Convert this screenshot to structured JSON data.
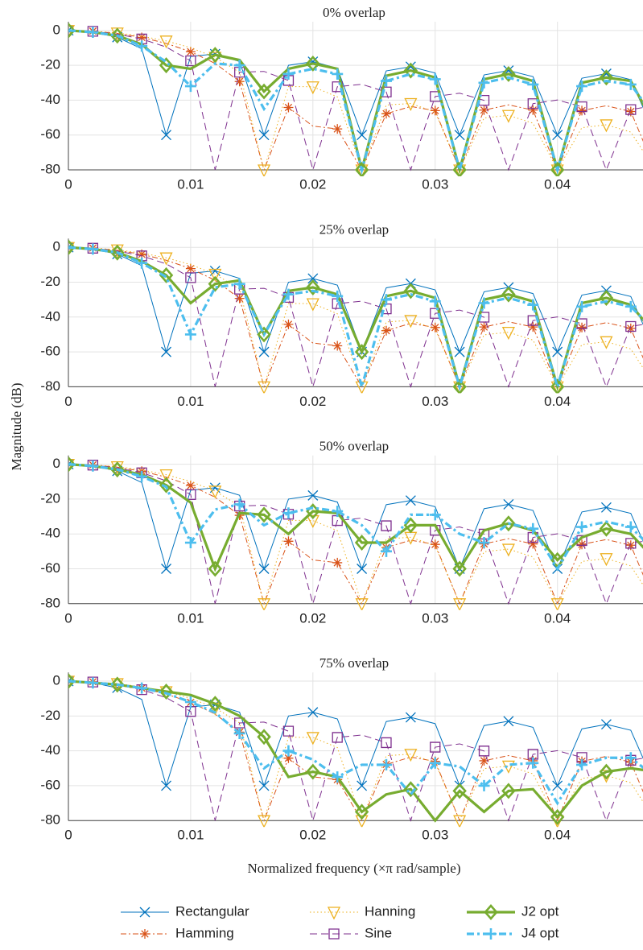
{
  "figure": {
    "ylabel": "Magnitude (dB)",
    "xlabel": "Normalized frequency (×π rad/sample)"
  },
  "chart_data": [
    {
      "type": "line",
      "title": "0% overlap",
      "x": [
        0,
        0.002,
        0.004,
        0.006,
        0.008,
        0.01,
        0.012,
        0.014,
        0.016,
        0.018,
        0.02,
        0.022,
        0.024,
        0.026,
        0.028,
        0.03,
        0.032,
        0.034,
        0.036,
        0.038,
        0.04,
        0.042,
        0.044,
        0.046,
        0.048
      ],
      "xlim": [
        0,
        0.047
      ],
      "xticks": [
        0,
        0.01,
        0.02,
        0.03,
        0.04
      ],
      "ylim": [
        -80,
        5
      ],
      "yticks": [
        0,
        -20,
        -40,
        -60,
        -80
      ],
      "grid": true,
      "series": [
        {
          "name": "Rectangular",
          "color": "#0072BD",
          "values": [
            0,
            -0.9,
            -3.9,
            -10.5,
            -60,
            -14.9,
            -13.5,
            -17.8,
            -60,
            -20,
            -17.9,
            -21.7,
            -60,
            -23.2,
            -20.8,
            -24.4,
            -60,
            -25.5,
            -23,
            -26.5,
            -60,
            -27.4,
            -24.8,
            -28.2,
            -60
          ]
        },
        {
          "name": "Hamming",
          "color": "#D95319",
          "values": [
            0,
            -0.4,
            -1.7,
            -4,
            -7.4,
            -12.2,
            -18.9,
            -29.3,
            -80,
            -44.2,
            -54.9,
            -56.5,
            -80,
            -47.8,
            -43.6,
            -46,
            -80,
            -45.7,
            -42.7,
            -45.7,
            -80,
            -46,
            -43.2,
            -46.5,
            -80
          ]
        },
        {
          "name": "Hanning",
          "color": "#EDB120",
          "values": [
            0,
            -0.35,
            -1.4,
            -3.3,
            -6,
            -9.9,
            -15.4,
            -24,
            -80,
            -32.2,
            -32.3,
            -38.1,
            -80,
            -42.8,
            -41.9,
            -46.8,
            -80,
            -50.2,
            -48.7,
            -53.2,
            -80,
            -55.8,
            -54.1,
            -58.3,
            -80
          ]
        },
        {
          "name": "Sine",
          "color": "#7E2F8E",
          "values": [
            0,
            -0.5,
            -2.1,
            -4.9,
            -9.5,
            -17.4,
            -80,
            -24,
            -23.5,
            -28.7,
            -80,
            -32.3,
            -30.9,
            -35.3,
            -80,
            -37.9,
            -36,
            -40.1,
            -80,
            -42,
            -39.9,
            -43.8,
            -80,
            -45.4,
            -43.1
          ]
        },
        {
          "name": "J2 opt",
          "color": "#77AC30",
          "values": [
            0,
            -1,
            -3,
            -8,
            -20,
            -22,
            -14,
            -17,
            -35,
            -22,
            -19,
            -22,
            -80,
            -26,
            -23,
            -27,
            -80,
            -28,
            -25,
            -29,
            -80,
            -30,
            -27,
            -29,
            -55
          ]
        },
        {
          "name": "J4 opt",
          "color": "#4DBEEE",
          "values": [
            0,
            -1,
            -3,
            -9,
            -18,
            -32,
            -19,
            -20,
            -45,
            -25,
            -22,
            -25,
            -80,
            -29,
            -25,
            -28,
            -80,
            -30,
            -27,
            -31,
            -80,
            -32,
            -29,
            -31,
            -50
          ]
        }
      ]
    },
    {
      "type": "line",
      "title": "25% overlap",
      "x": [
        0,
        0.002,
        0.004,
        0.006,
        0.008,
        0.01,
        0.012,
        0.014,
        0.016,
        0.018,
        0.02,
        0.022,
        0.024,
        0.026,
        0.028,
        0.03,
        0.032,
        0.034,
        0.036,
        0.038,
        0.04,
        0.042,
        0.044,
        0.046,
        0.048
      ],
      "xlim": [
        0,
        0.047
      ],
      "xticks": [
        0,
        0.01,
        0.02,
        0.03,
        0.04
      ],
      "ylim": [
        -80,
        5
      ],
      "yticks": [
        0,
        -20,
        -40,
        -60,
        -80
      ],
      "grid": true,
      "series": [
        {
          "name": "Rectangular",
          "color": "#0072BD",
          "values": [
            0,
            -0.9,
            -3.9,
            -10.5,
            -60,
            -14.9,
            -13.5,
            -17.8,
            -60,
            -20,
            -17.9,
            -21.7,
            -60,
            -23.2,
            -20.8,
            -24.4,
            -60,
            -25.5,
            -23,
            -26.5,
            -60,
            -27.4,
            -24.8,
            -28.2,
            -60
          ]
        },
        {
          "name": "Hamming",
          "color": "#D95319",
          "values": [
            0,
            -0.4,
            -1.7,
            -4,
            -7.4,
            -12.2,
            -18.9,
            -29.3,
            -80,
            -44.2,
            -54.9,
            -56.5,
            -80,
            -47.8,
            -43.6,
            -46,
            -80,
            -45.7,
            -42.7,
            -45.7,
            -80,
            -46,
            -43.2,
            -46.5,
            -80
          ]
        },
        {
          "name": "Hanning",
          "color": "#EDB120",
          "values": [
            0,
            -0.35,
            -1.4,
            -3.3,
            -6,
            -9.9,
            -15.4,
            -24,
            -80,
            -32.2,
            -32.3,
            -38.1,
            -80,
            -42.8,
            -41.9,
            -46.8,
            -80,
            -50.2,
            -48.7,
            -53.2,
            -80,
            -55.8,
            -54.1,
            -58.3,
            -80
          ]
        },
        {
          "name": "Sine",
          "color": "#7E2F8E",
          "values": [
            0,
            -0.5,
            -2.1,
            -4.9,
            -9.5,
            -17.4,
            -80,
            -24,
            -23.5,
            -28.7,
            -80,
            -32.3,
            -30.9,
            -35.3,
            -80,
            -37.9,
            -36,
            -40.1,
            -80,
            -42,
            -39.9,
            -43.8,
            -80,
            -45.4,
            -43.1
          ]
        },
        {
          "name": "J2 opt",
          "color": "#77AC30",
          "values": [
            0,
            -1,
            -3,
            -8,
            -16,
            -32,
            -21,
            -19,
            -50,
            -25,
            -23,
            -27,
            -60,
            -28,
            -25,
            -29,
            -80,
            -30,
            -27,
            -31,
            -80,
            -32,
            -29,
            -33,
            -50
          ]
        },
        {
          "name": "J4 opt",
          "color": "#4DBEEE",
          "values": [
            0,
            -1,
            -3,
            -9,
            -17,
            -50,
            -23,
            -21,
            -50,
            -27,
            -25,
            -28,
            -80,
            -30,
            -27,
            -31,
            -80,
            -32,
            -29,
            -33,
            -80,
            -34,
            -31,
            -34,
            -48
          ]
        }
      ]
    },
    {
      "type": "line",
      "title": "50% overlap",
      "x": [
        0,
        0.002,
        0.004,
        0.006,
        0.008,
        0.01,
        0.012,
        0.014,
        0.016,
        0.018,
        0.02,
        0.022,
        0.024,
        0.026,
        0.028,
        0.03,
        0.032,
        0.034,
        0.036,
        0.038,
        0.04,
        0.042,
        0.044,
        0.046,
        0.048
      ],
      "xlim": [
        0,
        0.047
      ],
      "xticks": [
        0,
        0.01,
        0.02,
        0.03,
        0.04
      ],
      "ylim": [
        -80,
        5
      ],
      "yticks": [
        0,
        -20,
        -40,
        -60,
        -80
      ],
      "grid": true,
      "series": [
        {
          "name": "Rectangular",
          "color": "#0072BD",
          "values": [
            0,
            -0.9,
            -3.9,
            -10.5,
            -60,
            -14.9,
            -13.5,
            -17.8,
            -60,
            -20,
            -17.9,
            -21.7,
            -60,
            -23.2,
            -20.8,
            -24.4,
            -60,
            -25.5,
            -23,
            -26.5,
            -60,
            -27.4,
            -24.8,
            -28.2,
            -60
          ]
        },
        {
          "name": "Hamming",
          "color": "#D95319",
          "values": [
            0,
            -0.4,
            -1.7,
            -4,
            -7.4,
            -12.2,
            -18.9,
            -29.3,
            -80,
            -44.2,
            -54.9,
            -56.5,
            -80,
            -47.8,
            -43.6,
            -46,
            -80,
            -45.7,
            -42.7,
            -45.7,
            -80,
            -46,
            -43.2,
            -46.5,
            -80
          ]
        },
        {
          "name": "Hanning",
          "color": "#EDB120",
          "values": [
            0,
            -0.35,
            -1.4,
            -3.3,
            -6,
            -9.9,
            -15.4,
            -24,
            -80,
            -32.2,
            -32.3,
            -38.1,
            -80,
            -42.8,
            -41.9,
            -46.8,
            -80,
            -50.2,
            -48.7,
            -53.2,
            -80,
            -55.8,
            -54.1,
            -58.3,
            -80
          ]
        },
        {
          "name": "Sine",
          "color": "#7E2F8E",
          "values": [
            0,
            -0.5,
            -2.1,
            -4.9,
            -9.5,
            -17.4,
            -80,
            -24,
            -23.5,
            -28.7,
            -80,
            -32.3,
            -30.9,
            -35.3,
            -80,
            -37.9,
            -36,
            -40.1,
            -80,
            -42,
            -39.9,
            -43.8,
            -80,
            -45.4,
            -43.1
          ]
        },
        {
          "name": "J2 opt",
          "color": "#77AC30",
          "values": [
            0,
            -1,
            -3,
            -6,
            -12,
            -22,
            -60,
            -28,
            -29,
            -40,
            -27,
            -28,
            -45,
            -45,
            -35,
            -35,
            -60,
            -38,
            -34,
            -38,
            -55,
            -42,
            -37,
            -40,
            -55
          ]
        },
        {
          "name": "J4 opt",
          "color": "#4DBEEE",
          "values": [
            0,
            -1,
            -3,
            -7,
            -13,
            -45,
            -26,
            -23,
            -35,
            -28,
            -25,
            -27,
            -35,
            -50,
            -29,
            -29,
            -40,
            -45,
            -34,
            -37,
            -60,
            -36,
            -33,
            -36,
            -50
          ]
        }
      ]
    },
    {
      "type": "line",
      "title": "75% overlap",
      "x": [
        0,
        0.002,
        0.004,
        0.006,
        0.008,
        0.01,
        0.012,
        0.014,
        0.016,
        0.018,
        0.02,
        0.022,
        0.024,
        0.026,
        0.028,
        0.03,
        0.032,
        0.034,
        0.036,
        0.038,
        0.04,
        0.042,
        0.044,
        0.046,
        0.048
      ],
      "xlim": [
        0,
        0.047
      ],
      "xticks": [
        0,
        0.01,
        0.02,
        0.03,
        0.04
      ],
      "ylim": [
        -80,
        5
      ],
      "yticks": [
        0,
        -20,
        -40,
        -60,
        -80
      ],
      "grid": true,
      "series": [
        {
          "name": "Rectangular",
          "color": "#0072BD",
          "values": [
            0,
            -0.9,
            -3.9,
            -10.5,
            -60,
            -14.9,
            -13.5,
            -17.8,
            -60,
            -20,
            -17.9,
            -21.7,
            -60,
            -23.2,
            -20.8,
            -24.4,
            -60,
            -25.5,
            -23,
            -26.5,
            -60,
            -27.4,
            -24.8,
            -28.2,
            -60
          ]
        },
        {
          "name": "Hamming",
          "color": "#D95319",
          "values": [
            0,
            -0.4,
            -1.7,
            -4,
            -7.4,
            -12.2,
            -18.9,
            -29.3,
            -80,
            -44.2,
            -54.9,
            -56.5,
            -80,
            -47.8,
            -43.6,
            -46,
            -80,
            -45.7,
            -42.7,
            -45.7,
            -80,
            -46,
            -43.2,
            -46.5,
            -80
          ]
        },
        {
          "name": "Hanning",
          "color": "#EDB120",
          "values": [
            0,
            -0.35,
            -1.4,
            -3.3,
            -6,
            -9.9,
            -15.4,
            -24,
            -80,
            -32.2,
            -32.3,
            -38.1,
            -80,
            -42.8,
            -41.9,
            -46.8,
            -80,
            -50.2,
            -48.7,
            -53.2,
            -80,
            -55.8,
            -54.1,
            -58.3,
            -80
          ]
        },
        {
          "name": "Sine",
          "color": "#7E2F8E",
          "values": [
            0,
            -0.5,
            -2.1,
            -4.9,
            -9.5,
            -17.4,
            -80,
            -24,
            -23.5,
            -28.7,
            -80,
            -32.3,
            -30.9,
            -35.3,
            -80,
            -37.9,
            -36,
            -40.1,
            -80,
            -42,
            -39.9,
            -43.8,
            -80,
            -45.4,
            -43.1
          ]
        },
        {
          "name": "J2 opt",
          "color": "#77AC30",
          "values": [
            0,
            -1,
            -2,
            -4,
            -6,
            -8,
            -13,
            -20,
            -32,
            -55,
            -52,
            -55,
            -75,
            -65,
            -62,
            -80,
            -63,
            -75,
            -63,
            -62,
            -78,
            -60,
            -52,
            -50,
            -52
          ]
        },
        {
          "name": "J4 opt",
          "color": "#4DBEEE",
          "values": [
            0,
            -1,
            -2,
            -4,
            -7,
            -12,
            -18,
            -30,
            -50,
            -40,
            -45,
            -55,
            -48,
            -48,
            -65,
            -47,
            -49,
            -60,
            -48,
            -47,
            -70,
            -48,
            -44,
            -44,
            -55
          ]
        }
      ]
    }
  ]
}
